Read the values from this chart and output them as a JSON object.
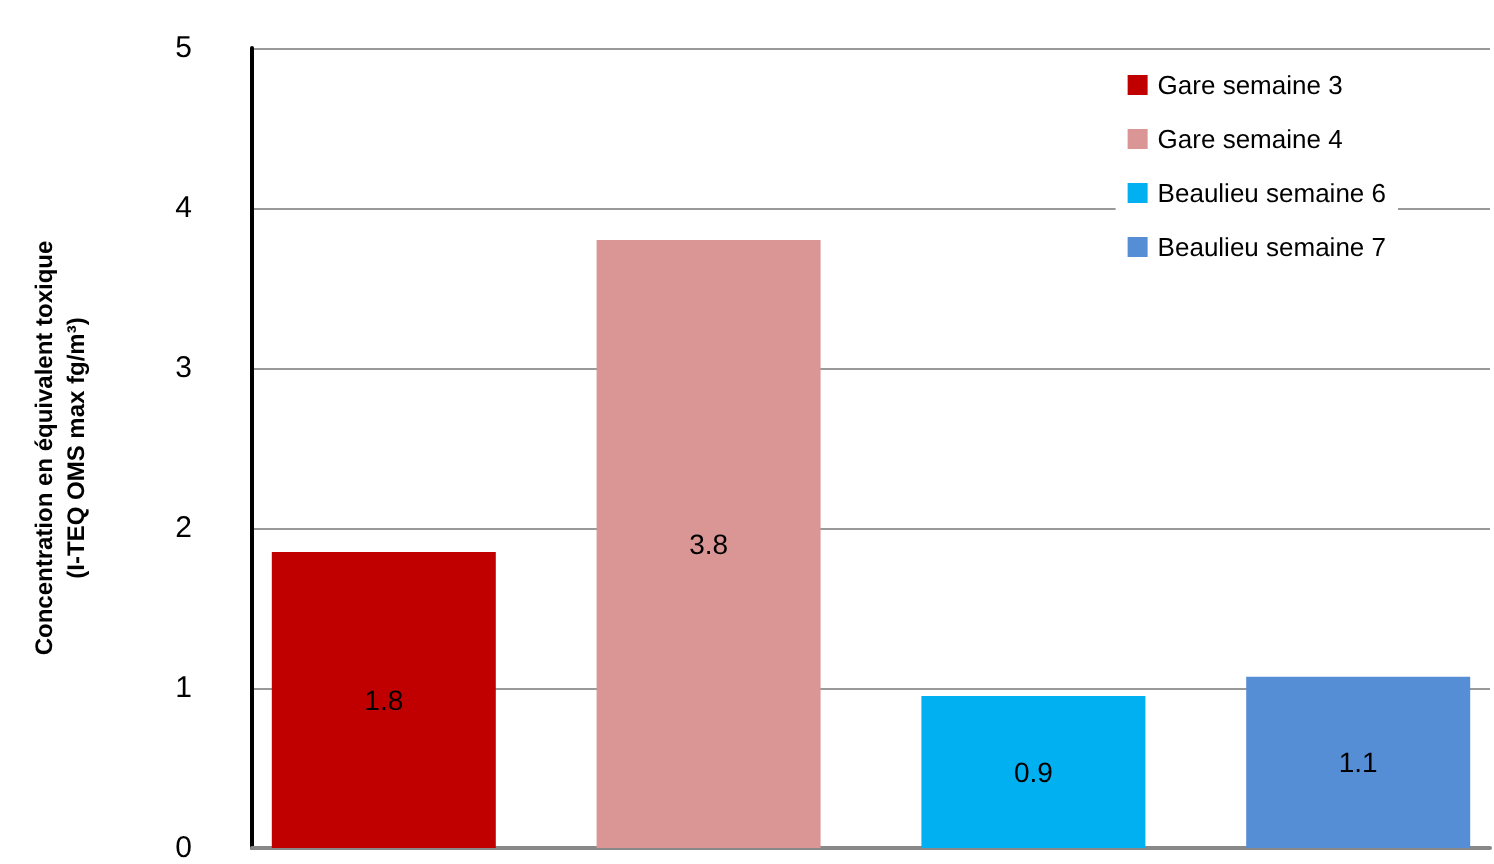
{
  "chart_data": {
    "type": "bar",
    "ylabel": "Concentration en équivalent toxique\n(I-TEQ OMS max fg/m³)",
    "categories": [
      null
    ],
    "series": [
      {
        "name": "Gare semaine 3",
        "color": "#c00000",
        "values": [
          1.85
        ],
        "value_labels": [
          "1.8"
        ]
      },
      {
        "name": "Gare semaine 4",
        "color": "#d99694",
        "values": [
          3.8
        ],
        "value_labels": [
          "3.8"
        ]
      },
      {
        "name": "Beaulieu semaine 6",
        "color": "#00b0f0",
        "values": [
          0.95
        ],
        "value_labels": [
          "0.9"
        ]
      },
      {
        "name": "Beaulieu semaine 7",
        "color": "#558ed5",
        "values": [
          1.07
        ],
        "value_labels": [
          "1.1"
        ]
      }
    ],
    "ylim": [
      0,
      5
    ],
    "yticks": [
      0,
      1,
      2,
      3,
      4,
      5
    ],
    "grid": "y",
    "legend": "top right"
  }
}
